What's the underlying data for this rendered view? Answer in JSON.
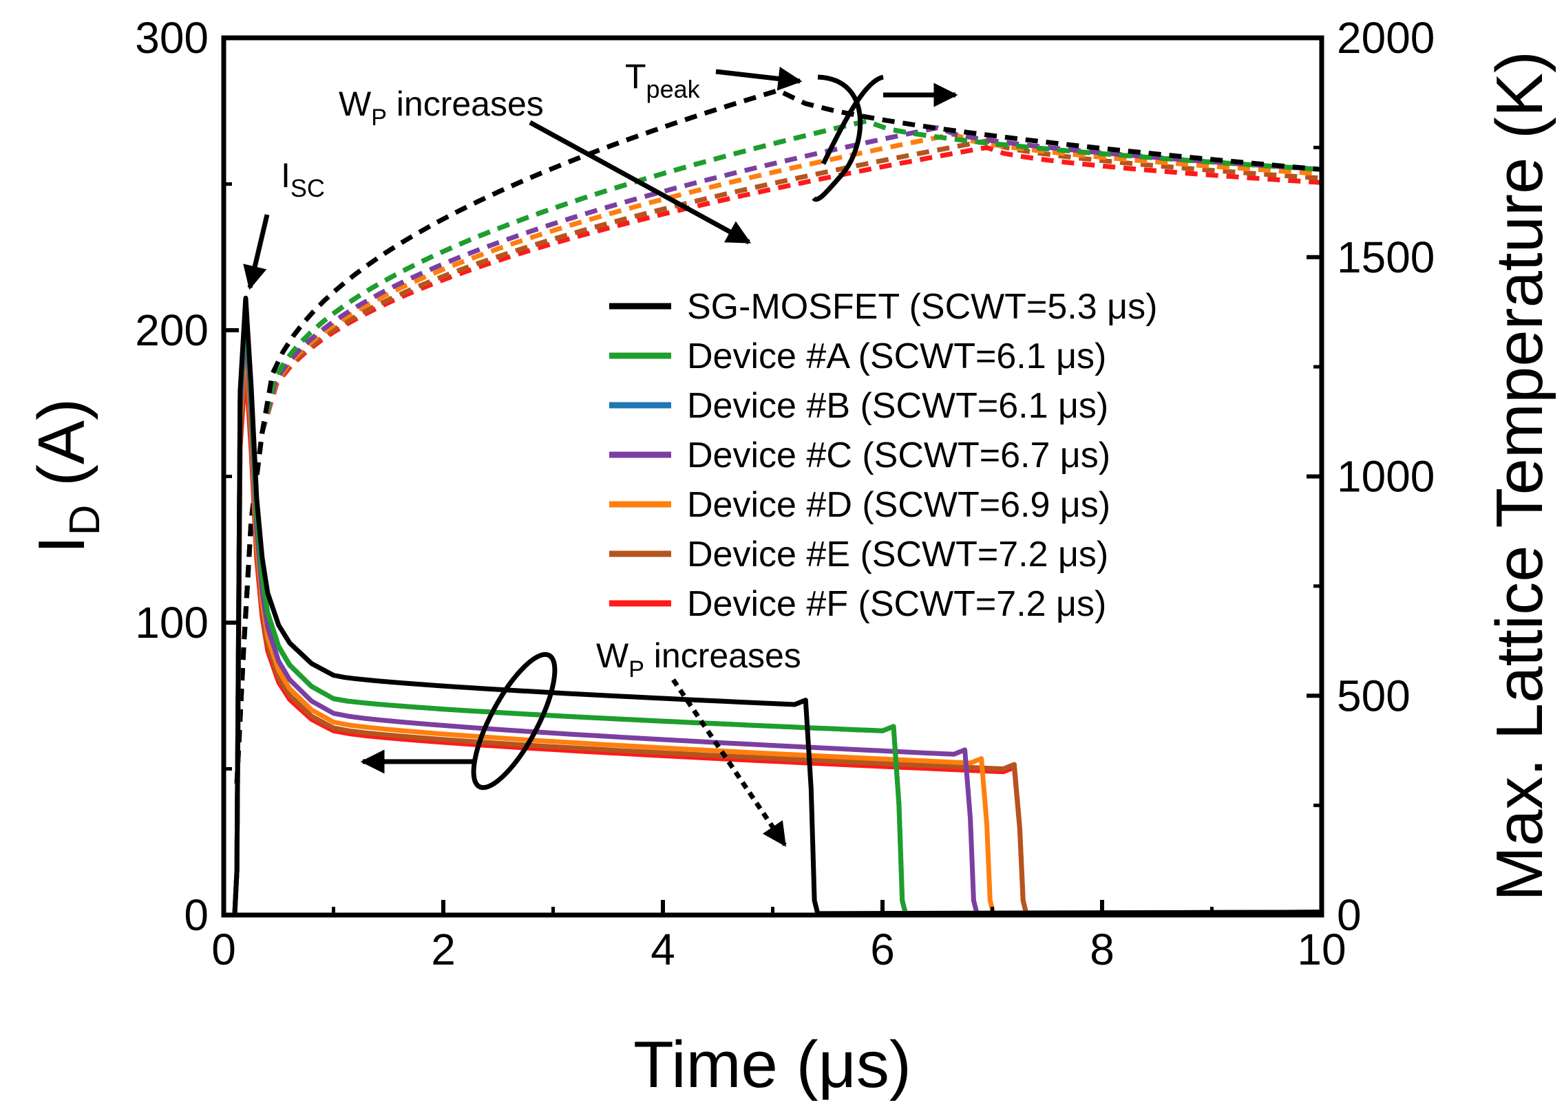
{
  "chart_data": {
    "type": "line",
    "title": "",
    "xlabel": "Time (μs)",
    "ylabel_left": {
      "main": "I",
      "sub": "D",
      "rest": " (A)"
    },
    "ylabel_right": "Max. Lattice Temperature (K)",
    "xlim": [
      0,
      10
    ],
    "ylim_left": [
      0,
      300
    ],
    "ylim_right": [
      0,
      2000
    ],
    "x_ticks": [
      "0",
      "2",
      "4",
      "6",
      "8",
      "10"
    ],
    "y_left_ticks": [
      "0",
      "100",
      "200",
      "300"
    ],
    "y_right_ticks": [
      "0",
      "500",
      "1000",
      "1500",
      "2000"
    ],
    "grid": false,
    "legend_position": "center",
    "series": [
      {
        "name": "SG-MOSFET (SCWT=5.3 μs)",
        "color": "#000000",
        "peak_current": 211,
        "plateau_start": 82,
        "plateau_end": 72,
        "fall_time": 5.35,
        "peak_temp": 1880,
        "final_temp": 1700
      },
      {
        "name": "Device #A (SCWT=6.1 μs)",
        "color": "#1e9e2b",
        "peak_current": 209,
        "plateau_start": 74,
        "plateau_end": 63,
        "fall_time": 6.15,
        "peak_temp": 1810,
        "final_temp": 1700
      },
      {
        "name": "Device #B (SCWT=6.1 μs)",
        "color": "#1f77b4",
        "peak_current": 207,
        "plateau_start": 74,
        "plateau_end": 63,
        "fall_time": 6.15,
        "peak_temp": 1810,
        "final_temp": 1700
      },
      {
        "name": "Device #C (SCWT=6.7 μs)",
        "color": "#7b3fa0",
        "peak_current": 203,
        "plateau_start": 69,
        "plateau_end": 55,
        "fall_time": 6.8,
        "peak_temp": 1795,
        "final_temp": 1700
      },
      {
        "name": "Device #D (SCWT=6.9 μs)",
        "color": "#ff7f0e",
        "peak_current": 199,
        "plateau_start": 66,
        "plateau_end": 52,
        "fall_time": 6.95,
        "peak_temp": 1780,
        "final_temp": 1690
      },
      {
        "name": "Device #E (SCWT=7.2 μs)",
        "color": "#b5541e",
        "peak_current": 193,
        "plateau_start": 64,
        "plateau_end": 50,
        "fall_time": 7.25,
        "peak_temp": 1765,
        "final_temp": 1680
      },
      {
        "name": "Device #F (SCWT=7.2 μs)",
        "color": "#ff1a1a",
        "peak_current": 188,
        "plateau_start": 63,
        "plateau_end": 49,
        "fall_time": 7.25,
        "peak_temp": 1750,
        "final_temp": 1670
      }
    ],
    "annotations": {
      "isc": {
        "main": "I",
        "sub": "SC"
      },
      "tpeak": {
        "main": "T",
        "sub": "peak"
      },
      "wp_top": {
        "main": "W",
        "sub": "P",
        "rest": " increases"
      },
      "wp_bottom": {
        "main": "W",
        "sub": "P",
        "rest": " increases"
      }
    }
  }
}
